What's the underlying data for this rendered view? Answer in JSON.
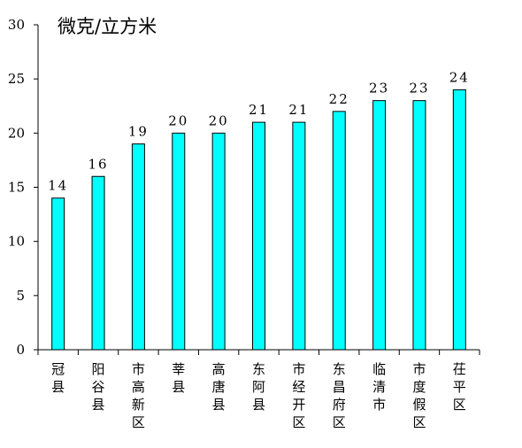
{
  "chart_data": {
    "type": "bar",
    "title": "",
    "xlabel": "",
    "ylabel": "微克/立方米",
    "ylim": [
      0,
      30
    ],
    "yticks": [
      0,
      5,
      10,
      15,
      20,
      25,
      30
    ],
    "grid": false,
    "bar_color": "#00ffff",
    "categories": [
      "冠县",
      "阳谷县",
      "市高新区",
      "莘县",
      "高唐县",
      "东阿县",
      "市经开区",
      "东昌府区",
      "临清市",
      "市度假区",
      "茌平区"
    ],
    "values": [
      14,
      16,
      19,
      20,
      20,
      21,
      21,
      22,
      23,
      23,
      24
    ],
    "data_labels": [
      "14",
      "16",
      "19",
      "20",
      "20",
      "21",
      "21",
      "22",
      "23",
      "23",
      "24"
    ]
  }
}
